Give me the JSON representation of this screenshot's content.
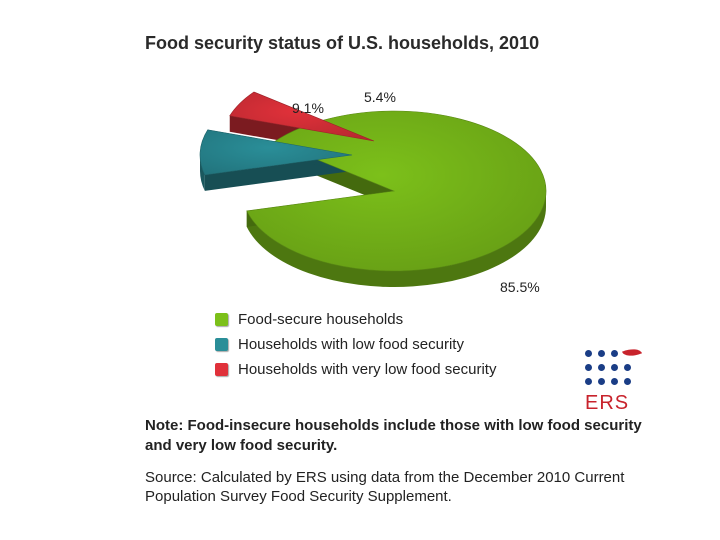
{
  "chart_data": {
    "type": "pie",
    "title": "Food security status of U.S. households, 2010",
    "slices": [
      {
        "name": "Food-secure households",
        "value": 85.5,
        "label": "85.5%",
        "color": "#7cc01a"
      },
      {
        "name": "Households with low food security",
        "value": 9.1,
        "label": "9.1%",
        "color": "#2a8e98"
      },
      {
        "name": "Households with very low food security",
        "value": 5.4,
        "label": "5.4%",
        "color": "#e0313a"
      }
    ],
    "legend_position": "bottom-left"
  },
  "logo": {
    "text": "ERS",
    "dot_color": "#1a3d86",
    "text_color": "#c8232c"
  },
  "note": "Note: Food-insecure households include those with low food security and very low food security.",
  "source": "Source: Calculated by ERS using data from the December 2010 Current Population Survey Food Security Supplement."
}
